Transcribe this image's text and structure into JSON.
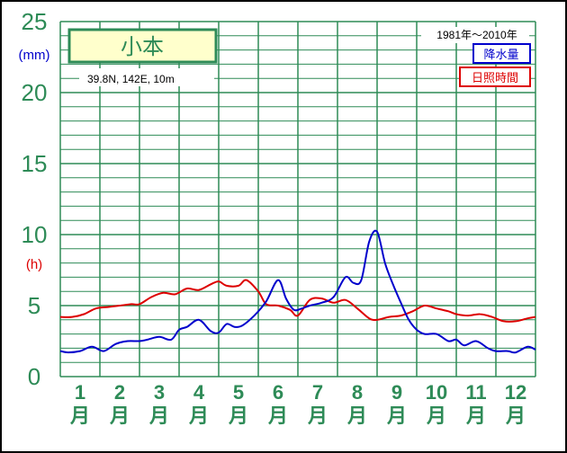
{
  "station": {
    "name": "小本",
    "location": "39.8N,  142E,  10m"
  },
  "period": "1981年〜2010年",
  "legend": {
    "precip_label": "降水量",
    "sunshine_label": "日照時間"
  },
  "axis": {
    "left_unit_top": "(mm)",
    "left_unit_mid": "(h)",
    "y_ticks": [
      "0",
      "5",
      "10",
      "15",
      "20",
      "25"
    ]
  },
  "months": [
    "1",
    "2",
    "3",
    "4",
    "5",
    "6",
    "7",
    "8",
    "9",
    "10",
    "11",
    "12"
  ],
  "month_suffix": "月",
  "colors": {
    "grid": "#2e8b57",
    "precip": "#0000cc",
    "sunshine": "#dd0000",
    "label": "#2e8b57"
  },
  "chart_data": {
    "type": "line",
    "x_unit": "month (1.0 = start of Jan, 13.0 = end of Dec)",
    "ylim": [
      0,
      25
    ],
    "grid": true,
    "legend_position": "top-right",
    "series": [
      {
        "name": "降水量",
        "unit": "mm",
        "color": "#0000cc",
        "x": [
          1.0,
          1.2,
          1.5,
          1.8,
          2.1,
          2.4,
          2.7,
          3.0,
          3.2,
          3.5,
          3.8,
          4.0,
          4.2,
          4.5,
          4.8,
          5.0,
          5.2,
          5.4,
          5.6,
          5.9,
          6.2,
          6.5,
          6.7,
          6.9,
          7.1,
          7.3,
          7.6,
          7.9,
          8.2,
          8.4,
          8.6,
          8.8,
          9.0,
          9.2,
          9.4,
          9.6,
          9.8,
          10.0,
          10.2,
          10.5,
          10.8,
          11.0,
          11.2,
          11.5,
          11.8,
          12.0,
          12.3,
          12.5,
          12.8,
          13.0
        ],
        "values": [
          1.8,
          1.7,
          1.8,
          2.1,
          1.8,
          2.3,
          2.5,
          2.5,
          2.6,
          2.8,
          2.6,
          3.3,
          3.5,
          4.0,
          3.2,
          3.1,
          3.7,
          3.5,
          3.6,
          4.3,
          5.3,
          6.8,
          5.5,
          4.7,
          4.8,
          5.0,
          5.2,
          5.6,
          7.0,
          6.6,
          6.8,
          9.5,
          10.2,
          8.0,
          6.5,
          5.2,
          4.0,
          3.3,
          3.0,
          3.0,
          2.5,
          2.6,
          2.2,
          2.5,
          2.0,
          1.8,
          1.8,
          1.7,
          2.1,
          1.9
        ]
      },
      {
        "name": "日照時間",
        "unit": "h",
        "color": "#dd0000",
        "x": [
          1.0,
          1.3,
          1.6,
          1.9,
          2.2,
          2.5,
          2.8,
          3.0,
          3.3,
          3.6,
          3.9,
          4.2,
          4.5,
          4.8,
          5.0,
          5.2,
          5.5,
          5.7,
          6.0,
          6.2,
          6.5,
          6.8,
          7.0,
          7.3,
          7.6,
          7.9,
          8.2,
          8.5,
          8.8,
          9.0,
          9.3,
          9.6,
          9.9,
          10.2,
          10.5,
          10.8,
          11.0,
          11.3,
          11.6,
          11.9,
          12.2,
          12.5,
          12.8,
          13.0
        ],
        "values": [
          4.2,
          4.2,
          4.4,
          4.8,
          4.9,
          5.0,
          5.1,
          5.1,
          5.6,
          5.9,
          5.8,
          6.2,
          6.1,
          6.5,
          6.7,
          6.4,
          6.4,
          6.8,
          6.0,
          5.1,
          5.0,
          4.7,
          4.3,
          5.4,
          5.5,
          5.2,
          5.4,
          4.8,
          4.1,
          4.0,
          4.2,
          4.3,
          4.6,
          5.0,
          4.8,
          4.6,
          4.4,
          4.3,
          4.4,
          4.2,
          3.9,
          3.9,
          4.1,
          4.2
        ]
      }
    ]
  }
}
